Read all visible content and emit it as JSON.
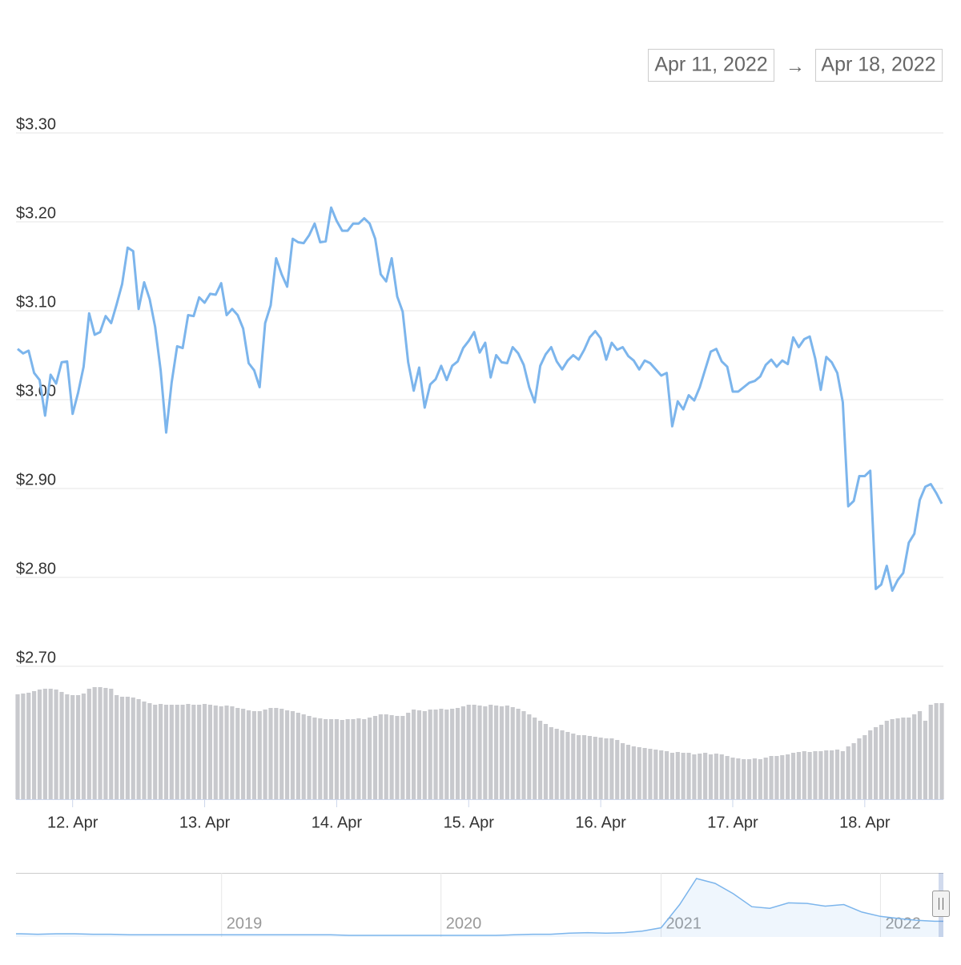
{
  "chart_data": {
    "type": "line",
    "range_start": "Apr 11, 2022",
    "range_separator": "→",
    "range_end": "Apr 18, 2022",
    "color": "#7cb5ec",
    "grid": true,
    "ylim": [
      2.7,
      3.3
    ],
    "yticks": [
      {
        "value": 2.7,
        "label": "$2.70"
      },
      {
        "value": 2.8,
        "label": "$2.80"
      },
      {
        "value": 2.9,
        "label": "$2.90"
      },
      {
        "value": 3.0,
        "label": "$3.00"
      },
      {
        "value": 3.1,
        "label": "$3.10"
      },
      {
        "value": 3.2,
        "label": "$3.20"
      },
      {
        "value": 3.3,
        "label": "$3.30"
      }
    ],
    "xlim": [
      "2022-04-11T14:00",
      "2022-04-18T14:00"
    ],
    "xticks": [
      {
        "value": "2022-04-12T00:00",
        "label": "12. Apr"
      },
      {
        "value": "2022-04-13T00:00",
        "label": "13. Apr"
      },
      {
        "value": "2022-04-14T00:00",
        "label": "14. Apr"
      },
      {
        "value": "2022-04-15T00:00",
        "label": "15. Apr"
      },
      {
        "value": "2022-04-16T00:00",
        "label": "16. Apr"
      },
      {
        "value": "2022-04-17T00:00",
        "label": "17. Apr"
      },
      {
        "value": "2022-04-18T00:00",
        "label": "18. Apr"
      }
    ],
    "x": [
      "2022-04-11T14:00",
      "2022-04-11T15:00",
      "2022-04-11T16:00",
      "2022-04-11T17:00",
      "2022-04-11T18:00",
      "2022-04-11T19:00",
      "2022-04-11T20:00",
      "2022-04-11T21:00",
      "2022-04-11T22:00",
      "2022-04-11T23:00",
      "2022-04-12T00:00",
      "2022-04-12T01:00",
      "2022-04-12T02:00",
      "2022-04-12T03:00",
      "2022-04-12T04:00",
      "2022-04-12T05:00",
      "2022-04-12T06:00",
      "2022-04-12T07:00",
      "2022-04-12T08:00",
      "2022-04-12T09:00",
      "2022-04-12T10:00",
      "2022-04-12T11:00",
      "2022-04-12T12:00",
      "2022-04-12T13:00",
      "2022-04-12T14:00",
      "2022-04-12T15:00",
      "2022-04-12T16:00",
      "2022-04-12T17:00",
      "2022-04-12T18:00",
      "2022-04-12T19:00",
      "2022-04-12T20:00",
      "2022-04-12T21:00",
      "2022-04-12T22:00",
      "2022-04-12T23:00",
      "2022-04-13T00:00",
      "2022-04-13T01:00",
      "2022-04-13T02:00",
      "2022-04-13T03:00",
      "2022-04-13T04:00",
      "2022-04-13T05:00",
      "2022-04-13T06:00",
      "2022-04-13T07:00",
      "2022-04-13T08:00",
      "2022-04-13T09:00",
      "2022-04-13T10:00",
      "2022-04-13T11:00",
      "2022-04-13T12:00",
      "2022-04-13T13:00",
      "2022-04-13T14:00",
      "2022-04-13T15:00",
      "2022-04-13T16:00",
      "2022-04-13T17:00",
      "2022-04-13T18:00",
      "2022-04-13T19:00",
      "2022-04-13T20:00",
      "2022-04-13T21:00",
      "2022-04-13T22:00",
      "2022-04-13T23:00",
      "2022-04-14T00:00",
      "2022-04-14T01:00",
      "2022-04-14T02:00",
      "2022-04-14T03:00",
      "2022-04-14T04:00",
      "2022-04-14T05:00",
      "2022-04-14T06:00",
      "2022-04-14T07:00",
      "2022-04-14T08:00",
      "2022-04-14T09:00",
      "2022-04-14T10:00",
      "2022-04-14T11:00",
      "2022-04-14T12:00",
      "2022-04-14T13:00",
      "2022-04-14T14:00",
      "2022-04-14T15:00",
      "2022-04-14T16:00",
      "2022-04-14T17:00",
      "2022-04-14T18:00",
      "2022-04-14T19:00",
      "2022-04-14T20:00",
      "2022-04-14T21:00",
      "2022-04-14T22:00",
      "2022-04-14T23:00",
      "2022-04-15T00:00",
      "2022-04-15T01:00",
      "2022-04-15T02:00",
      "2022-04-15T03:00",
      "2022-04-15T04:00",
      "2022-04-15T05:00",
      "2022-04-15T06:00",
      "2022-04-15T07:00",
      "2022-04-15T08:00",
      "2022-04-15T09:00",
      "2022-04-15T10:00",
      "2022-04-15T11:00",
      "2022-04-15T12:00",
      "2022-04-15T13:00",
      "2022-04-15T14:00",
      "2022-04-15T15:00",
      "2022-04-15T16:00",
      "2022-04-15T17:00",
      "2022-04-15T18:00",
      "2022-04-15T19:00",
      "2022-04-15T20:00",
      "2022-04-15T21:00",
      "2022-04-15T22:00",
      "2022-04-15T23:00",
      "2022-04-16T00:00",
      "2022-04-16T01:00",
      "2022-04-16T02:00",
      "2022-04-16T03:00",
      "2022-04-16T04:00",
      "2022-04-16T05:00",
      "2022-04-16T06:00",
      "2022-04-16T07:00",
      "2022-04-16T08:00",
      "2022-04-16T09:00",
      "2022-04-16T10:00",
      "2022-04-16T11:00",
      "2022-04-16T12:00",
      "2022-04-16T13:00",
      "2022-04-16T14:00",
      "2022-04-16T15:00",
      "2022-04-16T16:00",
      "2022-04-16T17:00",
      "2022-04-16T18:00",
      "2022-04-16T19:00",
      "2022-04-16T20:00",
      "2022-04-16T21:00",
      "2022-04-16T22:00",
      "2022-04-16T23:00",
      "2022-04-17T00:00",
      "2022-04-17T01:00",
      "2022-04-17T02:00",
      "2022-04-17T03:00",
      "2022-04-17T04:00",
      "2022-04-17T05:00",
      "2022-04-17T06:00",
      "2022-04-17T07:00",
      "2022-04-17T08:00",
      "2022-04-17T09:00",
      "2022-04-17T10:00",
      "2022-04-17T11:00",
      "2022-04-17T12:00",
      "2022-04-17T13:00",
      "2022-04-17T14:00",
      "2022-04-17T15:00",
      "2022-04-17T16:00",
      "2022-04-17T17:00",
      "2022-04-17T18:00",
      "2022-04-17T19:00",
      "2022-04-17T20:00",
      "2022-04-17T21:00",
      "2022-04-17T22:00",
      "2022-04-17T23:00",
      "2022-04-18T00:00",
      "2022-04-18T01:00",
      "2022-04-18T02:00",
      "2022-04-18T03:00",
      "2022-04-18T04:00",
      "2022-04-18T05:00",
      "2022-04-18T06:00",
      "2022-04-18T07:00",
      "2022-04-18T08:00",
      "2022-04-18T09:00",
      "2022-04-18T10:00",
      "2022-04-18T11:00",
      "2022-04-18T12:00",
      "2022-04-18T13:00",
      "2022-04-18T14:00"
    ],
    "values": [
      3.057,
      3.052,
      3.055,
      3.03,
      3.022,
      2.982,
      3.028,
      3.018,
      3.042,
      3.043,
      2.984,
      3.008,
      3.037,
      3.097,
      3.073,
      3.076,
      3.094,
      3.086,
      3.107,
      3.13,
      3.171,
      3.167,
      3.102,
      3.132,
      3.113,
      3.082,
      3.033,
      2.963,
      3.019,
      3.06,
      3.058,
      3.095,
      3.094,
      3.115,
      3.109,
      3.119,
      3.118,
      3.131,
      3.095,
      3.102,
      3.095,
      3.08,
      3.041,
      3.033,
      3.014,
      3.086,
      3.106,
      3.159,
      3.141,
      3.127,
      3.181,
      3.177,
      3.176,
      3.185,
      3.198,
      3.177,
      3.178,
      3.216,
      3.201,
      3.19,
      3.19,
      3.198,
      3.198,
      3.204,
      3.198,
      3.181,
      3.141,
      3.133,
      3.159,
      3.116,
      3.099,
      3.042,
      3.01,
      3.036,
      2.991,
      3.017,
      3.023,
      3.038,
      3.022,
      3.038,
      3.043,
      3.058,
      3.066,
      3.076,
      3.053,
      3.064,
      3.025,
      3.05,
      3.042,
      3.041,
      3.059,
      3.052,
      3.039,
      3.014,
      2.997,
      3.038,
      3.051,
      3.059,
      3.043,
      3.034,
      3.044,
      3.05,
      3.045,
      3.056,
      3.07,
      3.077,
      3.069,
      3.045,
      3.064,
      3.056,
      3.059,
      3.049,
      3.044,
      3.034,
      3.044,
      3.041,
      3.034,
      3.027,
      3.03,
      2.97,
      2.998,
      2.989,
      3.005,
      2.999,
      3.014,
      3.034,
      3.054,
      3.057,
      3.043,
      3.037,
      3.009,
      3.009,
      3.014,
      3.019,
      3.021,
      3.026,
      3.039,
      3.045,
      3.037,
      3.044,
      3.04,
      3.07,
      3.059,
      3.068,
      3.071,
      3.046,
      3.011,
      3.048,
      3.042,
      3.03,
      2.997,
      2.88,
      2.886,
      2.914,
      2.914,
      2.92,
      2.787,
      2.792,
      2.813,
      2.785,
      2.797,
      2.805,
      2.839,
      2.849,
      2.887,
      2.902,
      2.905,
      2.895,
      2.883
    ],
    "volume": {
      "color": "#c8c9cd",
      "values": [
        131,
        132,
        133,
        135,
        137,
        138,
        138,
        137,
        134,
        131,
        130,
        130,
        132,
        138,
        140,
        140,
        139,
        138,
        130,
        128,
        128,
        127,
        125,
        122,
        120,
        118,
        119,
        118,
        118,
        118,
        118,
        119,
        118,
        118,
        119,
        118,
        117,
        116,
        117,
        116,
        114,
        113,
        111,
        110,
        110,
        112,
        114,
        114,
        113,
        111,
        110,
        108,
        106,
        104,
        102,
        101,
        100,
        100,
        100,
        99,
        100,
        100,
        101,
        100,
        102,
        104,
        106,
        106,
        105,
        104,
        104,
        108,
        112,
        111,
        110,
        112,
        112,
        113,
        112,
        113,
        114,
        116,
        118,
        118,
        117,
        116,
        118,
        117,
        116,
        117,
        115,
        113,
        110,
        106,
        102,
        98,
        94,
        90,
        88,
        86,
        84,
        82,
        80,
        80,
        79,
        78,
        77,
        76,
        76,
        74,
        70,
        68,
        66,
        65,
        64,
        63,
        62,
        61,
        60,
        58,
        59,
        58,
        58,
        56,
        57,
        58,
        56,
        57,
        56,
        54,
        52,
        51,
        50,
        50,
        51,
        50,
        52,
        54,
        54,
        55,
        56,
        58,
        59,
        60,
        59,
        60,
        60,
        61,
        61,
        62,
        60,
        66,
        70,
        76,
        80,
        86,
        90,
        93,
        98,
        100,
        101,
        102,
        102,
        106,
        110,
        98,
        118,
        120,
        120
      ]
    },
    "navigator": {
      "xlim": [
        "2018-02",
        "2022-04"
      ],
      "xticks": [
        {
          "value": "2019-01",
          "label": "2019"
        },
        {
          "value": "2020-01",
          "label": "2020"
        },
        {
          "value": "2021-01",
          "label": "2021"
        },
        {
          "value": "2022-01",
          "label": "2022"
        }
      ],
      "x": [
        "2018-02",
        "2018-03",
        "2018-04",
        "2018-05",
        "2018-06",
        "2018-07",
        "2018-08",
        "2018-09",
        "2018-10",
        "2018-11",
        "2018-12",
        "2019-01",
        "2019-02",
        "2019-03",
        "2019-04",
        "2019-05",
        "2019-06",
        "2019-07",
        "2019-08",
        "2019-09",
        "2019-10",
        "2019-11",
        "2019-12",
        "2020-01",
        "2020-02",
        "2020-03",
        "2020-04",
        "2020-05",
        "2020-06",
        "2020-07",
        "2020-08",
        "2020-09",
        "2020-10",
        "2020-11",
        "2020-12",
        "2021-01",
        "2021-02",
        "2021-03",
        "2021-04",
        "2021-05",
        "2021-06",
        "2021-07",
        "2021-08",
        "2021-09",
        "2021-10",
        "2021-11",
        "2021-12",
        "2022-01",
        "2022-02",
        "2022-03",
        "2022-04"
      ],
      "values": [
        0.6,
        0.5,
        0.6,
        0.6,
        0.5,
        0.5,
        0.4,
        0.4,
        0.4,
        0.4,
        0.4,
        0.4,
        0.4,
        0.4,
        0.4,
        0.4,
        0.4,
        0.4,
        0.3,
        0.3,
        0.3,
        0.3,
        0.3,
        0.3,
        0.3,
        0.3,
        0.3,
        0.4,
        0.5,
        0.5,
        0.7,
        0.8,
        0.7,
        0.8,
        1.1,
        1.7,
        6.0,
        10.8,
        9.9,
        8.0,
        5.6,
        5.3,
        6.3,
        6.2,
        5.7,
        6.0,
        4.6,
        3.8,
        3.4,
        3.1,
        2.9
      ]
    }
  }
}
